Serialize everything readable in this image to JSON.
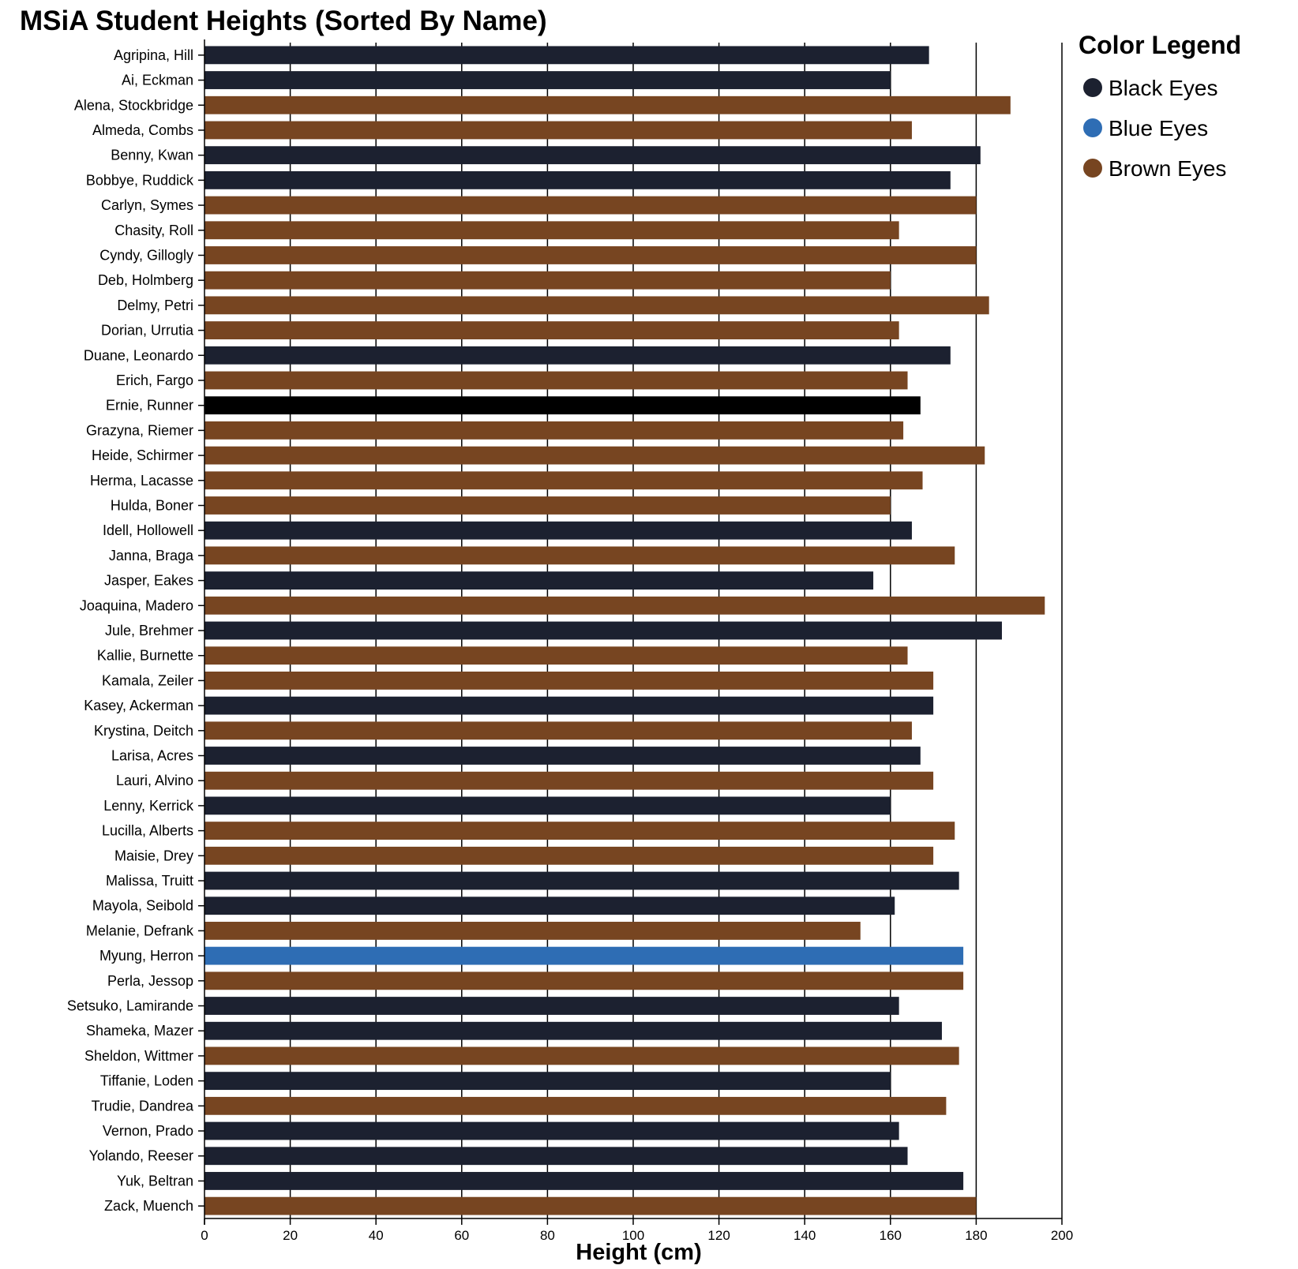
{
  "chart_data": {
    "type": "bar",
    "orientation": "horizontal",
    "title": "MSiA Student Heights (Sorted By Name)",
    "xlabel": "Height (cm)",
    "ylabel": "",
    "xlim": [
      0,
      200
    ],
    "x_ticks": [
      "0",
      "20",
      "40",
      "60",
      "80",
      "100",
      "120",
      "140",
      "160",
      "180",
      "200"
    ],
    "grid": "vertical gridlines",
    "legend": {
      "title": "Color Legend",
      "placement": "top-right",
      "items": [
        {
          "label": "Black Eyes",
          "color": "#1c2130"
        },
        {
          "label": "Blue Eyes",
          "color": "#2e6db4"
        },
        {
          "label": "Brown Eyes",
          "color": "#774521"
        }
      ]
    },
    "bars": [
      {
        "name": "Agripina, Hill",
        "value": 169,
        "color": "#1c2130"
      },
      {
        "name": "Ai, Eckman",
        "value": 160,
        "color": "#1c2130"
      },
      {
        "name": "Alena, Stockbridge",
        "value": 188,
        "color": "#774521"
      },
      {
        "name": "Almeda, Combs",
        "value": 165,
        "color": "#774521"
      },
      {
        "name": "Benny, Kwan",
        "value": 181,
        "color": "#1c2130"
      },
      {
        "name": "Bobbye, Ruddick",
        "value": 174,
        "color": "#1c2130"
      },
      {
        "name": "Carlyn, Symes",
        "value": 180,
        "color": "#774521"
      },
      {
        "name": "Chasity, Roll",
        "value": 162,
        "color": "#774521"
      },
      {
        "name": "Cyndy, Gillogly",
        "value": 180,
        "color": "#774521"
      },
      {
        "name": "Deb, Holmberg",
        "value": 160,
        "color": "#774521"
      },
      {
        "name": "Delmy, Petri",
        "value": 183,
        "color": "#774521"
      },
      {
        "name": "Dorian, Urrutia",
        "value": 162,
        "color": "#774521"
      },
      {
        "name": "Duane, Leonardo",
        "value": 174,
        "color": "#1c2130"
      },
      {
        "name": "Erich, Fargo",
        "value": 164,
        "color": "#774521"
      },
      {
        "name": "Ernie, Runner",
        "value": 167,
        "color": "#000000"
      },
      {
        "name": "Grazyna, Riemer",
        "value": 163,
        "color": "#774521"
      },
      {
        "name": "Heide, Schirmer",
        "value": 182,
        "color": "#774521"
      },
      {
        "name": "Herma, Lacasse",
        "value": 167.5,
        "color": "#774521"
      },
      {
        "name": "Hulda, Boner",
        "value": 160,
        "color": "#774521"
      },
      {
        "name": "Idell, Hollowell",
        "value": 165,
        "color": "#1c2130"
      },
      {
        "name": "Janna, Braga",
        "value": 175,
        "color": "#774521"
      },
      {
        "name": "Jasper, Eakes",
        "value": 156,
        "color": "#1c2130"
      },
      {
        "name": "Joaquina, Madero",
        "value": 196,
        "color": "#774521"
      },
      {
        "name": "Jule, Brehmer",
        "value": 186,
        "color": "#1c2130"
      },
      {
        "name": "Kallie, Burnette",
        "value": 164,
        "color": "#774521"
      },
      {
        "name": "Kamala, Zeiler",
        "value": 170,
        "color": "#774521"
      },
      {
        "name": "Kasey, Ackerman",
        "value": 170,
        "color": "#1c2130"
      },
      {
        "name": "Krystina, Deitch",
        "value": 165,
        "color": "#774521"
      },
      {
        "name": "Larisa, Acres",
        "value": 167,
        "color": "#1c2130"
      },
      {
        "name": "Lauri, Alvino",
        "value": 170,
        "color": "#774521"
      },
      {
        "name": "Lenny, Kerrick",
        "value": 160,
        "color": "#1c2130"
      },
      {
        "name": "Lucilla, Alberts",
        "value": 175,
        "color": "#774521"
      },
      {
        "name": "Maisie, Drey",
        "value": 170,
        "color": "#774521"
      },
      {
        "name": "Malissa, Truitt",
        "value": 176,
        "color": "#1c2130"
      },
      {
        "name": "Mayola, Seibold",
        "value": 161,
        "color": "#1c2130"
      },
      {
        "name": "Melanie, Defrank",
        "value": 153,
        "color": "#774521"
      },
      {
        "name": "Myung, Herron",
        "value": 177,
        "color": "#2e6db4"
      },
      {
        "name": "Perla, Jessop",
        "value": 177,
        "color": "#774521"
      },
      {
        "name": "Setsuko, Lamirande",
        "value": 162,
        "color": "#1c2130"
      },
      {
        "name": "Shameka, Mazer",
        "value": 172,
        "color": "#1c2130"
      },
      {
        "name": "Sheldon, Wittmer",
        "value": 176,
        "color": "#774521"
      },
      {
        "name": "Tiffanie, Loden",
        "value": 160,
        "color": "#1c2130"
      },
      {
        "name": "Trudie, Dandrea",
        "value": 173,
        "color": "#774521"
      },
      {
        "name": "Vernon, Prado",
        "value": 162,
        "color": "#1c2130"
      },
      {
        "name": "Yolando, Reeser",
        "value": 164,
        "color": "#1c2130"
      },
      {
        "name": "Yuk, Beltran",
        "value": 177,
        "color": "#1c2130"
      },
      {
        "name": "Zack, Muench",
        "value": 180,
        "color": "#774521"
      }
    ]
  }
}
